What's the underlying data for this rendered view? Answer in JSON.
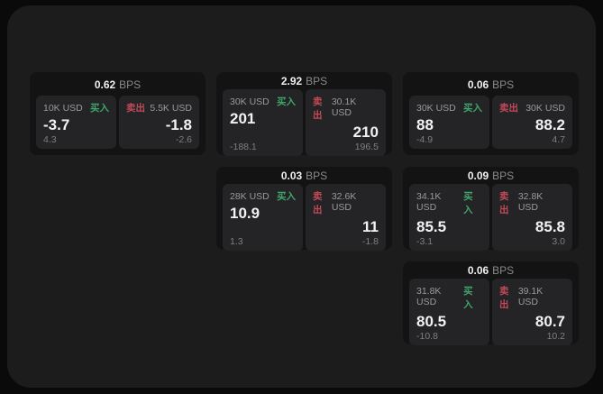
{
  "labels": {
    "buy": "买入",
    "sell": "卖出",
    "bps_unit": "BPS"
  },
  "colors": {
    "buy_green": "#3fa56b",
    "sell_red": "#c24a58",
    "value_white": "#f2f2f2",
    "window_bg": "#1c1c1d",
    "card_bg": "#131314",
    "panel_bg": "#242426"
  },
  "cards": [
    {
      "bps": "0.62",
      "buy": {
        "size": "10K USD",
        "value": "-3.7",
        "sub": "4.3"
      },
      "sell": {
        "size": "5.5K USD",
        "value": "-1.8",
        "sub": "-2.6"
      }
    },
    {
      "bps": "2.92",
      "buy": {
        "size": "30K USD",
        "value": "201",
        "sub": "-188.1"
      },
      "sell": {
        "size": "30.1K USD",
        "value": "210",
        "sub": "196.5"
      }
    },
    {
      "bps": "0.06",
      "buy": {
        "size": "30K USD",
        "value": "88",
        "sub": "-4.9"
      },
      "sell": {
        "size": "30K USD",
        "value": "88.2",
        "sub": "4.7"
      }
    },
    {
      "bps": "0.03",
      "buy": {
        "size": "28K USD",
        "value": "10.9",
        "sub": "1.3"
      },
      "sell": {
        "size": "32.6K USD",
        "value": "11",
        "sub": "-1.8"
      }
    },
    {
      "bps": "0.09",
      "buy": {
        "size": "34.1K USD",
        "value": "85.5",
        "sub": "-3.1"
      },
      "sell": {
        "size": "32.8K USD",
        "value": "85.8",
        "sub": "3.0"
      }
    },
    {
      "bps": "0.06",
      "buy": {
        "size": "31.8K USD",
        "value": "80.5",
        "sub": "-10.8"
      },
      "sell": {
        "size": "39.1K USD",
        "value": "80.7",
        "sub": "10.2"
      }
    }
  ]
}
